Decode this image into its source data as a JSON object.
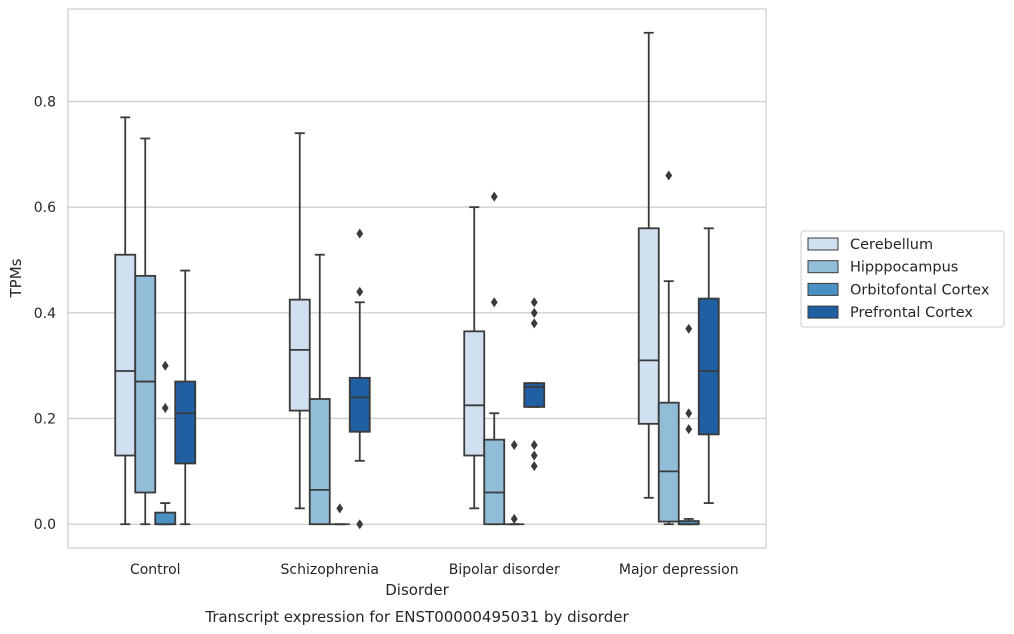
{
  "chart_data": {
    "type": "box",
    "xlabel": "Disorder",
    "ylabel": "TPMs",
    "caption": "Transcript expression for ENST00000495031 by disorder",
    "categories": [
      "Control",
      "Schizophrenia",
      "Bipolar disorder",
      "Major depression"
    ],
    "yticks": [
      0.0,
      0.2,
      0.4,
      0.6,
      0.8
    ],
    "ytick_labels": [
      "0.0",
      "0.2",
      "0.4",
      "0.6",
      "0.8"
    ],
    "ylim": [
      -0.045,
      0.975
    ],
    "grid": "horizontal",
    "legend_position": "right",
    "series": [
      {
        "name": "Cerebellum",
        "color": "#d0e0f0",
        "boxes": [
          {
            "whislo": 0.0,
            "q1": 0.13,
            "med": 0.29,
            "q3": 0.51,
            "whishi": 0.77,
            "fliers": []
          },
          {
            "whislo": 0.03,
            "q1": 0.215,
            "med": 0.33,
            "q3": 0.425,
            "whishi": 0.74,
            "fliers": []
          },
          {
            "whislo": 0.03,
            "q1": 0.13,
            "med": 0.225,
            "q3": 0.365,
            "whishi": 0.6,
            "fliers": []
          },
          {
            "whislo": 0.05,
            "q1": 0.19,
            "med": 0.31,
            "q3": 0.56,
            "whishi": 0.93,
            "fliers": []
          }
        ]
      },
      {
        "name": "Hipppocampus",
        "color": "#92bdd9",
        "boxes": [
          {
            "whislo": 0.0,
            "q1": 0.06,
            "med": 0.27,
            "q3": 0.47,
            "whishi": 0.73,
            "fliers": []
          },
          {
            "whislo": 0.0,
            "q1": 0.0,
            "med": 0.065,
            "q3": 0.237,
            "whishi": 0.51,
            "fliers": []
          },
          {
            "whislo": 0.0,
            "q1": 0.0,
            "med": 0.06,
            "q3": 0.16,
            "whishi": 0.21,
            "fliers": [
              0.62,
              0.42
            ]
          },
          {
            "whislo": 0.0,
            "q1": 0.005,
            "med": 0.1,
            "q3": 0.23,
            "whishi": 0.46,
            "fliers": [
              0.66
            ]
          }
        ]
      },
      {
        "name": "Orbitofontal Cortex",
        "color": "#4a90c3",
        "boxes": [
          {
            "whislo": 0.0,
            "q1": 0.0,
            "med": 0.0,
            "q3": 0.022,
            "whishi": 0.04,
            "fliers": [
              0.3,
              0.22
            ]
          },
          {
            "whislo": 0.0,
            "q1": 0.0,
            "med": 0.0,
            "q3": 0.0,
            "whishi": 0.0,
            "fliers": [
              0.03
            ]
          },
          {
            "whislo": 0.0,
            "q1": 0.0,
            "med": 0.0,
            "q3": 0.0,
            "whishi": 0.0,
            "fliers": [
              0.15,
              0.01
            ]
          },
          {
            "whislo": 0.0,
            "q1": 0.0,
            "med": 0.0,
            "q3": 0.006,
            "whishi": 0.01,
            "fliers": [
              0.37,
              0.21,
              0.18
            ]
          }
        ]
      },
      {
        "name": "Prefrontal Cortex",
        "color": "#1f5fa2",
        "boxes": [
          {
            "whislo": 0.0,
            "q1": 0.115,
            "med": 0.21,
            "q3": 0.27,
            "whishi": 0.48,
            "fliers": []
          },
          {
            "whislo": 0.12,
            "q1": 0.175,
            "med": 0.24,
            "q3": 0.277,
            "whishi": 0.42,
            "fliers": [
              0.55,
              0.44,
              0.0
            ]
          },
          {
            "whislo": 0.222,
            "q1": 0.222,
            "med": 0.26,
            "q3": 0.267,
            "whishi": 0.267,
            "fliers": [
              0.42,
              0.4,
              0.38,
              0.15,
              0.13,
              0.11
            ]
          },
          {
            "whislo": 0.04,
            "q1": 0.17,
            "med": 0.29,
            "q3": 0.427,
            "whishi": 0.56,
            "fliers": []
          }
        ]
      }
    ]
  }
}
